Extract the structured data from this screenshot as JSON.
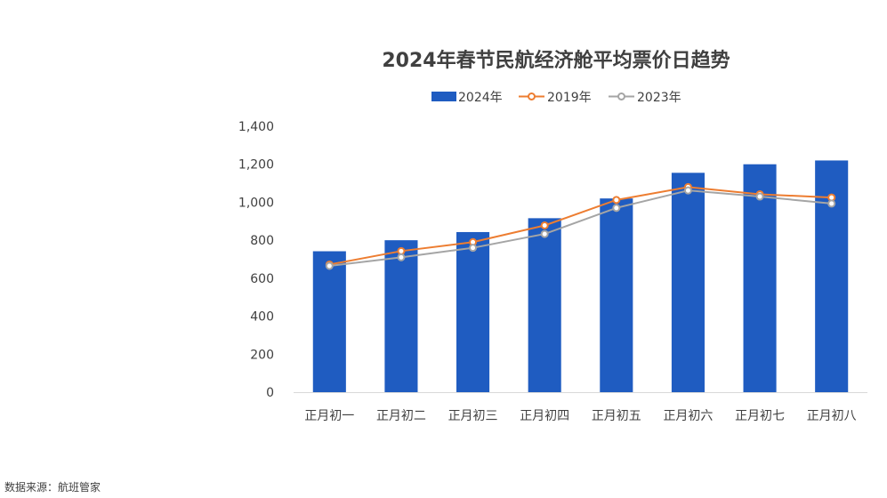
{
  "chart_data": {
    "type": "bar",
    "title": "2024年春节民航经济舱平均票价日趋势",
    "categories": [
      "正月初一",
      "正月初二",
      "正月初三",
      "正月初四",
      "正月初五",
      "正月初六",
      "正月初七",
      "正月初八"
    ],
    "ylim": [
      0,
      1400
    ],
    "yticks": [
      0,
      200,
      400,
      600,
      800,
      1000,
      1200,
      1400
    ],
    "ytick_labels": [
      "0",
      "200",
      "400",
      "600",
      "800",
      "1,000",
      "1,200",
      "1,400"
    ],
    "legend_position": "top",
    "grid": false,
    "series": [
      {
        "name": "2024年",
        "type": "bar",
        "color": "#1F5CC1",
        "values": [
          742,
          800,
          843,
          916,
          1020,
          1155,
          1200,
          1220
        ]
      },
      {
        "name": "2019年",
        "type": "line",
        "color": "#ED7D31",
        "values": [
          672,
          743,
          790,
          878,
          1012,
          1080,
          1042,
          1025
        ]
      },
      {
        "name": "2023年",
        "type": "line",
        "color": "#A5A5A5",
        "values": [
          665,
          710,
          760,
          833,
          970,
          1062,
          1030,
          993
        ]
      }
    ]
  },
  "source_note": "数据来源：航班管家"
}
